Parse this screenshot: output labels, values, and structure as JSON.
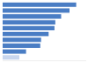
{
  "chart_data": {
    "type": "bar",
    "orientation": "horizontal",
    "categories": [
      null,
      null,
      null,
      null,
      null,
      null,
      null,
      null,
      null,
      null
    ],
    "values": [
      88,
      80,
      70,
      63,
      62,
      55,
      46,
      45,
      28,
      20
    ],
    "colors": [
      "#4a7dc4",
      "#4a7dc4",
      "#4a7dc4",
      "#4a7dc4",
      "#4a7dc4",
      "#4a7dc4",
      "#4a7dc4",
      "#4a7dc4",
      "#4a7dc4",
      "#c8d6ee"
    ],
    "ylim": [
      0,
      100
    ],
    "yticks": [],
    "grid": false,
    "tick_labels": false
  }
}
